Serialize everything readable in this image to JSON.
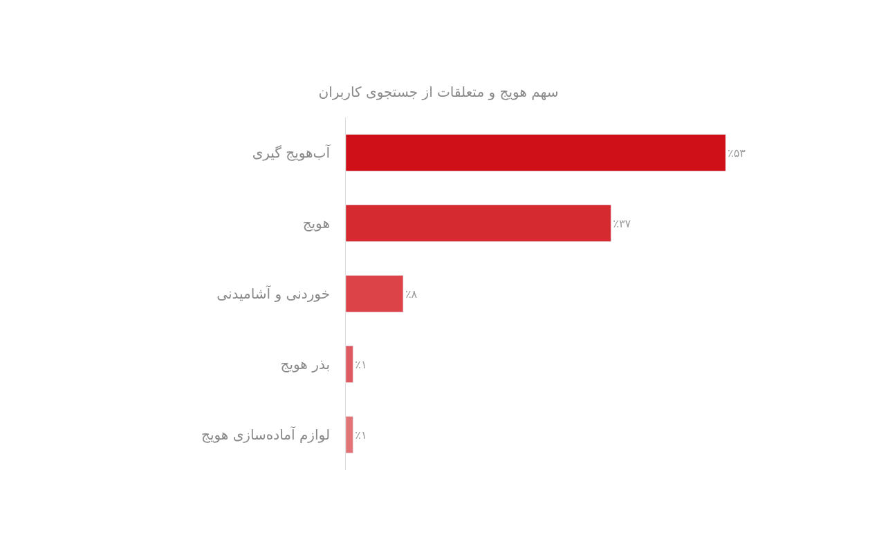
{
  "chart_data": {
    "type": "bar",
    "orientation": "horizontal",
    "title": "سهم هویج و متعلقات از جستجوی کاربران",
    "categories": [
      "آب‌هویج گیری",
      "هویج",
      "خوردنی و آشامیدنی",
      "بذر هویج",
      "لوازم آماده‌سازی هویج"
    ],
    "values": [
      53,
      37,
      8,
      1,
      1
    ],
    "colors": [
      "#d01018",
      "#d42a30",
      "#db4349",
      "#de5a60",
      "#e27477"
    ],
    "value_labels": [
      "٪۵۳",
      "٪۳۷",
      "٪۸",
      "٪۱",
      "٪۱"
    ]
  }
}
